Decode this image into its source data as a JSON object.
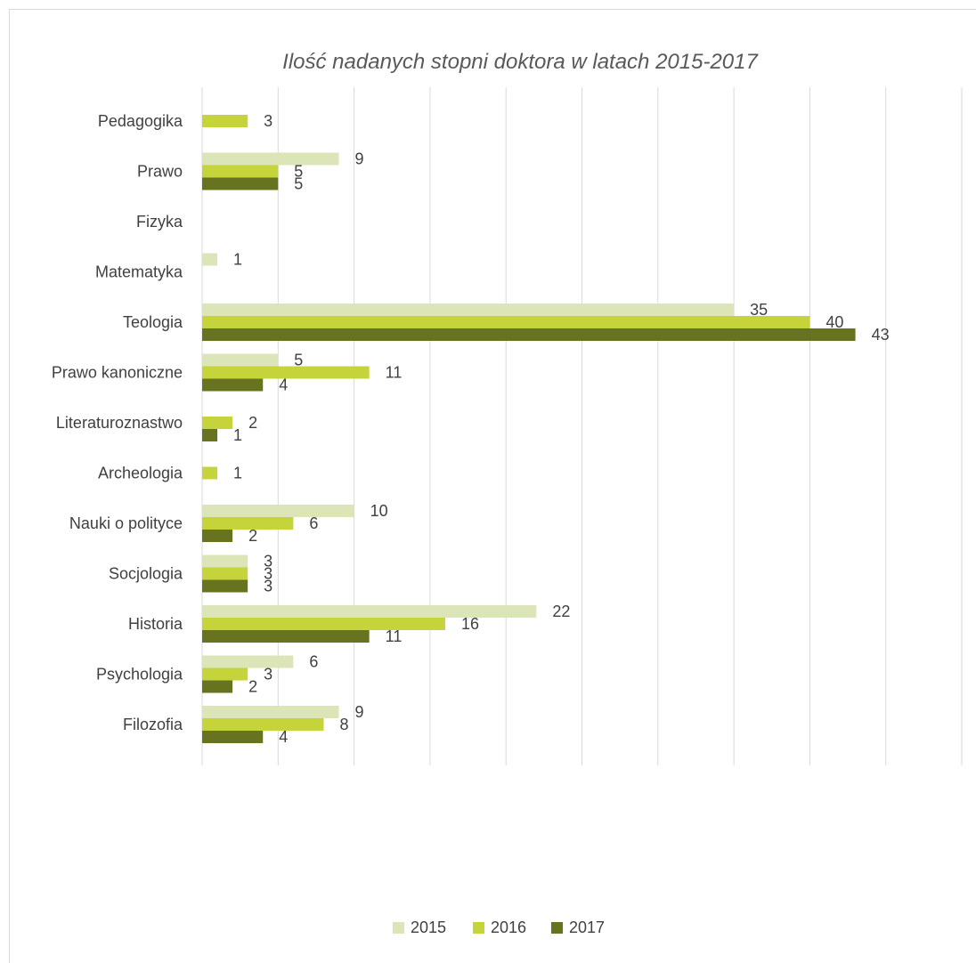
{
  "chart_data": {
    "type": "bar",
    "orientation": "horizontal",
    "title": "Ilość nadanych stopni doktora w latach 2015-2017",
    "categories": [
      "Pedagogika",
      "Prawo",
      "Fizyka",
      "Matematyka",
      "Teologia",
      "Prawo kanoniczne",
      "Literaturoznastwo",
      "Archeologia",
      "Nauki o polityce",
      "Socjologia",
      "Historia",
      "Psychologia",
      "Filozofia"
    ],
    "series": [
      {
        "name": "2015",
        "color": "#dbe5b8",
        "values": [
          null,
          9,
          null,
          1,
          35,
          5,
          null,
          null,
          10,
          3,
          22,
          6,
          9
        ]
      },
      {
        "name": "2016",
        "color": "#c4d43a",
        "values": [
          3,
          5,
          null,
          null,
          40,
          11,
          2,
          1,
          6,
          3,
          16,
          3,
          8
        ]
      },
      {
        "name": "2017",
        "color": "#67731f",
        "values": [
          null,
          5,
          null,
          null,
          43,
          4,
          1,
          null,
          2,
          3,
          11,
          2,
          4
        ]
      }
    ],
    "xlim": [
      0,
      50
    ],
    "grid_step": 5,
    "grid": true,
    "legend_position": "bottom"
  }
}
